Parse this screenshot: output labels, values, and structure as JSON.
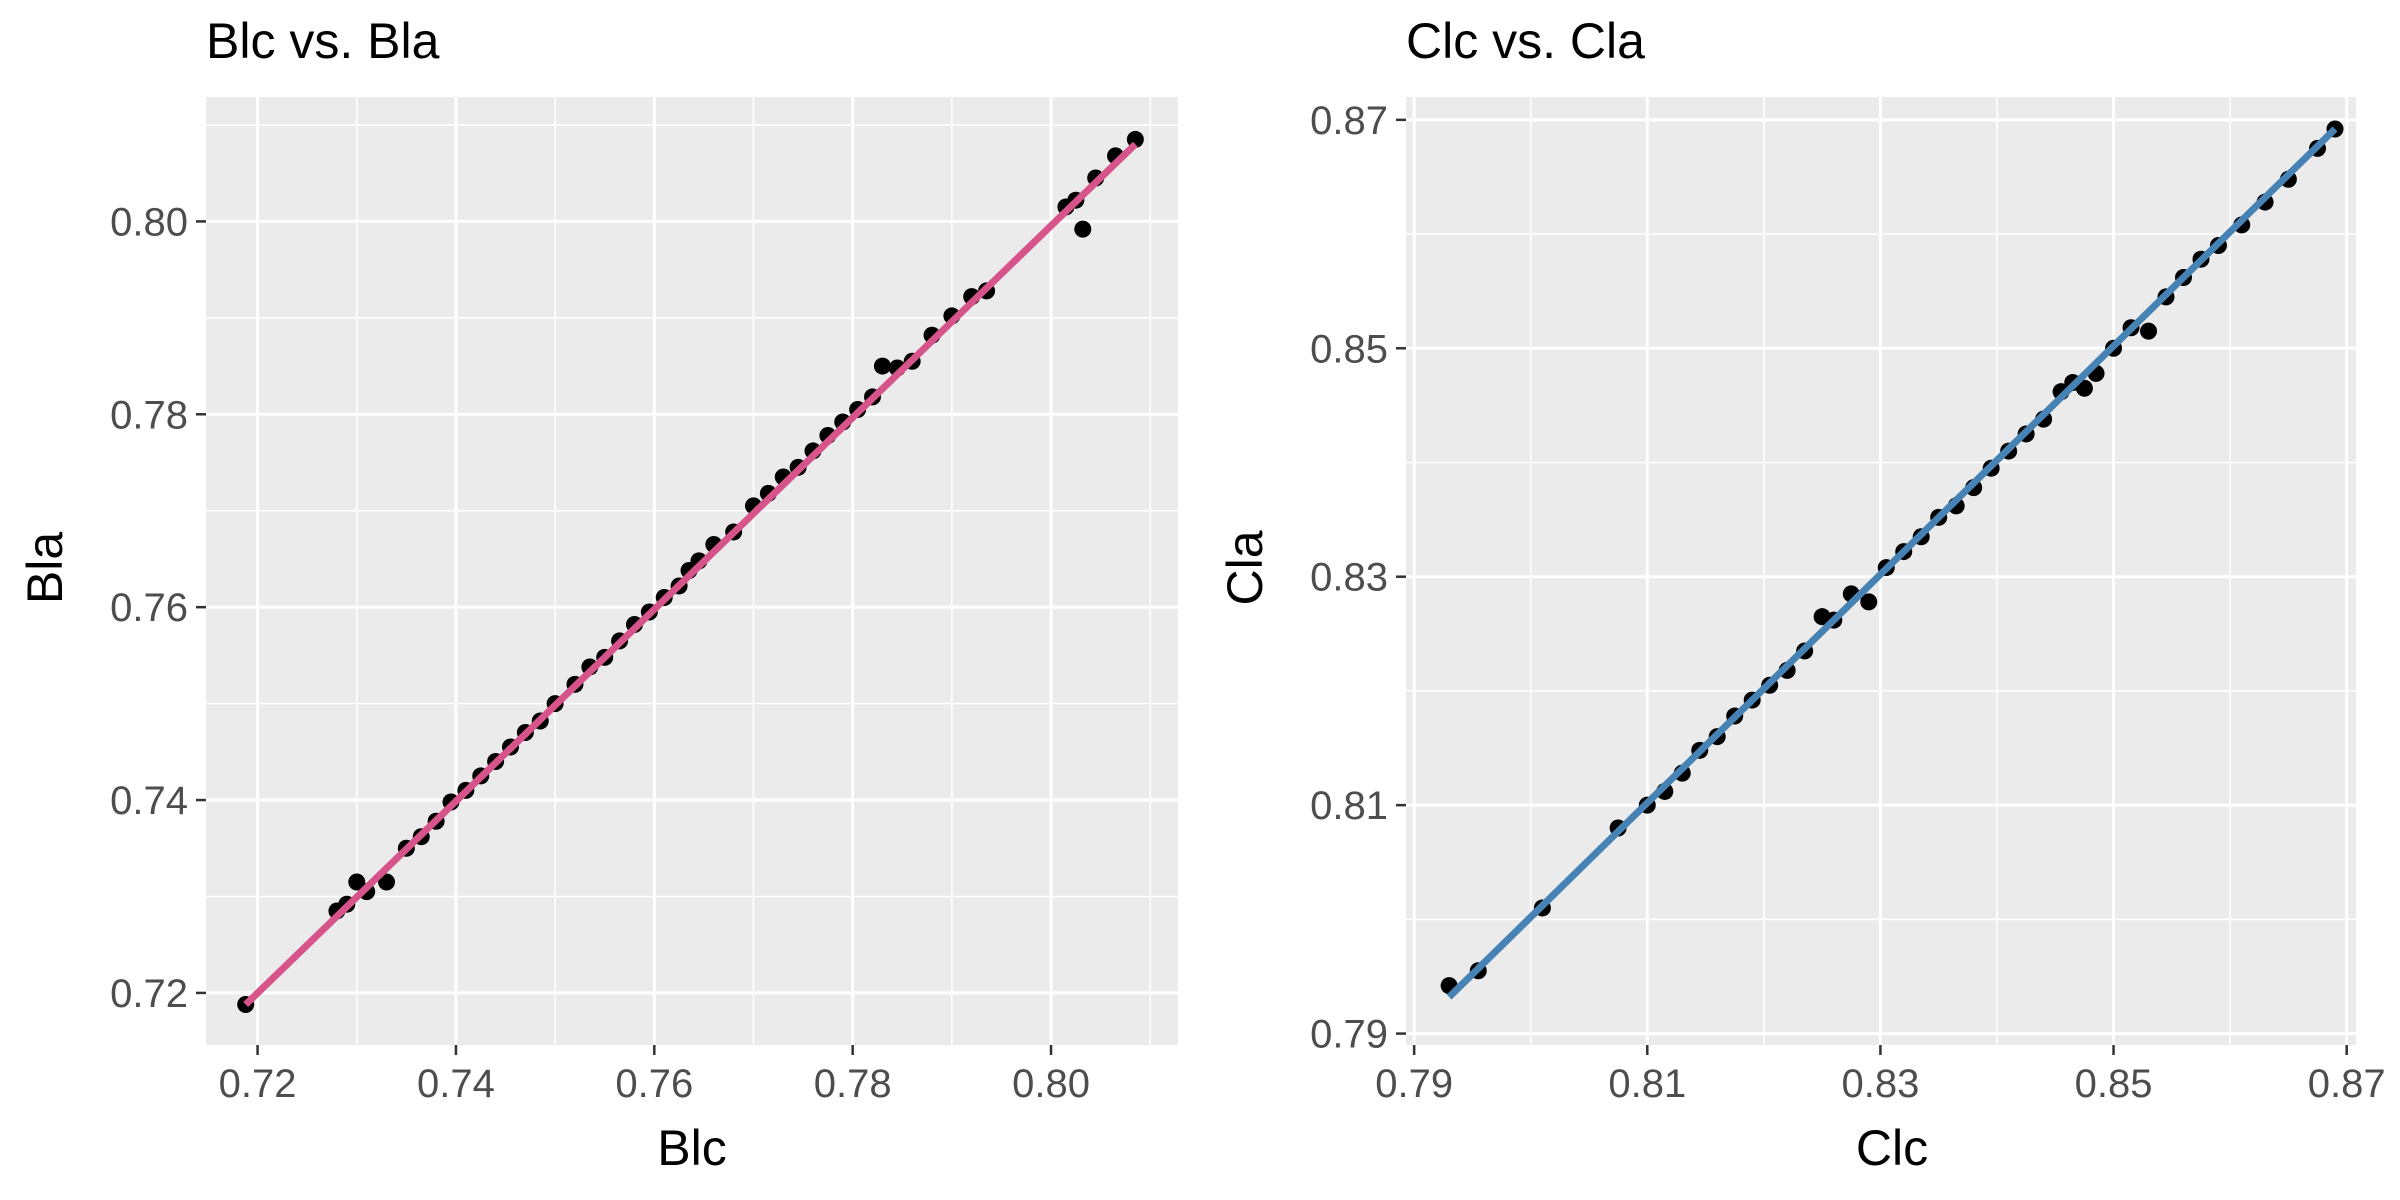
{
  "chart_data": [
    {
      "type": "scatter",
      "title": "Blc vs. Bla",
      "xlabel": "Blc",
      "ylabel": "Bla",
      "xlim": [
        0.7148,
        0.8128
      ],
      "ylim": [
        0.7146,
        0.8129
      ],
      "x_ticks": [
        0.72,
        0.74,
        0.76,
        0.78,
        0.8
      ],
      "x_tick_labels": [
        "0.72",
        "0.74",
        "0.76",
        "0.78",
        "0.80"
      ],
      "y_ticks": [
        0.72,
        0.74,
        0.76,
        0.78,
        0.8
      ],
      "y_tick_labels": [
        "0.72",
        "0.74",
        "0.76",
        "0.78",
        "0.80"
      ],
      "grid": true,
      "line_color": "#d6548a",
      "fit_line": {
        "x": [
          0.7188,
          0.8085
        ],
        "y": [
          0.7188,
          0.808
        ]
      },
      "points": {
        "x": [
          0.7188,
          0.728,
          0.729,
          0.73,
          0.731,
          0.733,
          0.735,
          0.7365,
          0.738,
          0.7395,
          0.741,
          0.7425,
          0.744,
          0.7455,
          0.747,
          0.7485,
          0.75,
          0.752,
          0.7535,
          0.755,
          0.7565,
          0.758,
          0.7595,
          0.761,
          0.7625,
          0.7635,
          0.7645,
          0.766,
          0.768,
          0.77,
          0.7715,
          0.773,
          0.7745,
          0.776,
          0.7775,
          0.779,
          0.7805,
          0.782,
          0.783,
          0.7845,
          0.786,
          0.788,
          0.79,
          0.792,
          0.7935,
          0.8015,
          0.8025,
          0.8032,
          0.8045,
          0.8065,
          0.8085
        ],
        "y": [
          0.7188,
          0.7285,
          0.7292,
          0.7315,
          0.7305,
          0.7315,
          0.735,
          0.7362,
          0.7378,
          0.7398,
          0.741,
          0.7425,
          0.744,
          0.7455,
          0.747,
          0.7482,
          0.75,
          0.752,
          0.7538,
          0.7548,
          0.7565,
          0.7582,
          0.7595,
          0.761,
          0.7622,
          0.7638,
          0.7648,
          0.7665,
          0.7678,
          0.7705,
          0.7718,
          0.7735,
          0.7745,
          0.7762,
          0.7778,
          0.7792,
          0.7805,
          0.7818,
          0.785,
          0.7848,
          0.7855,
          0.7882,
          0.7902,
          0.7922,
          0.7928,
          0.8015,
          0.8022,
          0.7992,
          0.8045,
          0.8068,
          0.8085
        ]
      }
    },
    {
      "type": "scatter",
      "title": "Clc vs. Cla",
      "xlabel": "Clc",
      "ylabel": "Cla",
      "xlim": [
        0.7893,
        0.8708
      ],
      "ylim": [
        0.789,
        0.872
      ],
      "x_ticks": [
        0.79,
        0.81,
        0.83,
        0.85,
        0.87
      ],
      "x_tick_labels": [
        "0.79",
        "0.81",
        "0.83",
        "0.85",
        "0.87"
      ],
      "y_ticks": [
        0.79,
        0.81,
        0.83,
        0.85,
        0.87
      ],
      "y_tick_labels": [
        "0.79",
        "0.81",
        "0.83",
        "0.85",
        "0.87"
      ],
      "grid": true,
      "line_color": "#4682b4",
      "fit_line": {
        "x": [
          0.793,
          0.869
        ],
        "y": [
          0.7932,
          0.8692
        ]
      },
      "points": {
        "x": [
          0.793,
          0.7955,
          0.801,
          0.8075,
          0.81,
          0.8115,
          0.813,
          0.8145,
          0.816,
          0.8175,
          0.819,
          0.8205,
          0.822,
          0.8235,
          0.825,
          0.826,
          0.8275,
          0.829,
          0.8305,
          0.832,
          0.8335,
          0.835,
          0.8365,
          0.838,
          0.8395,
          0.841,
          0.8425,
          0.844,
          0.8455,
          0.8465,
          0.8475,
          0.8485,
          0.85,
          0.8515,
          0.853,
          0.8545,
          0.856,
          0.8575,
          0.859,
          0.861,
          0.863,
          0.865,
          0.8675,
          0.869
        ],
        "y": [
          0.7942,
          0.7955,
          0.801,
          0.808,
          0.81,
          0.8112,
          0.8128,
          0.8148,
          0.816,
          0.8178,
          0.8192,
          0.8205,
          0.8218,
          0.8235,
          0.8265,
          0.8262,
          0.8285,
          0.8278,
          0.8308,
          0.8322,
          0.8335,
          0.8352,
          0.8362,
          0.8378,
          0.8395,
          0.841,
          0.8425,
          0.8438,
          0.8462,
          0.847,
          0.8465,
          0.8478,
          0.85,
          0.8518,
          0.8515,
          0.8545,
          0.8562,
          0.8578,
          0.859,
          0.8608,
          0.8628,
          0.8648,
          0.8675,
          0.8692
        ]
      }
    }
  ]
}
